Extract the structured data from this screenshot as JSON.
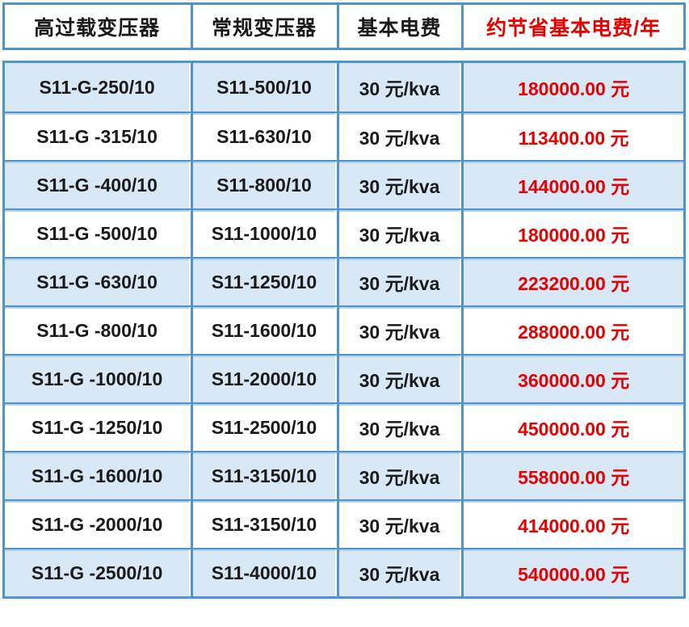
{
  "chart_data": {
    "type": "table",
    "columns": [
      "高过载变压器",
      "常规变压器",
      "基本电费",
      "约节省基本电费/年"
    ],
    "rows": [
      [
        "S11-G-250/10",
        "S11-500/10",
        "30 元/kva",
        "180000.00 元"
      ],
      [
        "S11-G -315/10",
        "S11-630/10",
        "30 元/kva",
        "113400.00 元"
      ],
      [
        "S11-G -400/10",
        "S11-800/10",
        "30 元/kva",
        "144000.00 元"
      ],
      [
        "S11-G -500/10",
        "S11-1000/10",
        "30 元/kva",
        "180000.00 元"
      ],
      [
        "S11-G -630/10",
        "S11-1250/10",
        "30 元/kva",
        "223200.00 元"
      ],
      [
        "S11-G -800/10",
        "S11-1600/10",
        "30 元/kva",
        "288000.00 元"
      ],
      [
        "S11-G -1000/10",
        "S11-2000/10",
        "30 元/kva",
        "360000.00 元"
      ],
      [
        "S11-G -1250/10",
        "S11-2500/10",
        "30 元/kva",
        "450000.00 元"
      ],
      [
        "S11-G -1600/10",
        "S11-3150/10",
        "30 元/kva",
        "558000.00 元"
      ],
      [
        "S11-G -2000/10",
        "S11-3150/10",
        "30 元/kva",
        "414000.00 元"
      ],
      [
        "S11-G -2500/10",
        "S11-4000/10",
        "30 元/kva",
        "540000.00 元"
      ]
    ],
    "layout": {
      "grid": "on",
      "alternating_rows": true,
      "highlight_column": "约节省基本电费/年"
    }
  },
  "styles": {
    "border_blue": "#4f93d1",
    "row_separator_light": "#b3d3ec",
    "alt_row_bg": "#d9e8f6",
    "header_bg": "#ffffff",
    "text_black": "#1a1a1a",
    "highlight_red": "#e60000"
  }
}
